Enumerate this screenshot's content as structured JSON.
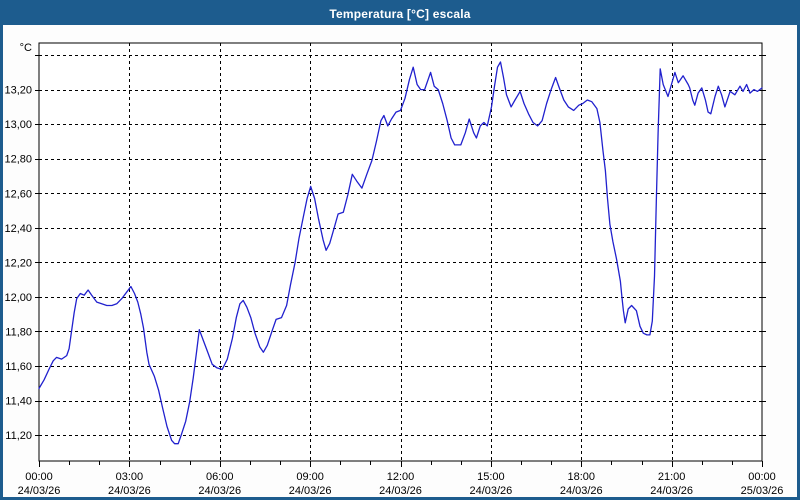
{
  "window": {
    "title": "Temperatura [°C] escala"
  },
  "colors": {
    "titlebar_bg": "#1d5c8e",
    "titlebar_text": "#ffffff",
    "window_border": "#1d5c8e",
    "plot_bg": "#fdfdfd",
    "grid_color": "#000000",
    "axis_color": "#000000",
    "label_color": "#000000",
    "line_color": "#2121ce"
  },
  "chart_data": {
    "type": "line",
    "title": "Temperatura [°C] escala",
    "xlabel": "",
    "ylabel": "°C",
    "legend": "none",
    "grid": "dashed",
    "ylim": [
      11.05,
      13.47
    ],
    "xlim_hours": [
      0,
      24
    ],
    "y_gridline_values": [
      11.2,
      11.4,
      11.6,
      11.8,
      12.0,
      12.2,
      12.4,
      12.6,
      12.8,
      13.0,
      13.2,
      13.4
    ],
    "y_ticks": [
      {
        "value": 13.2,
        "label": "13,20"
      },
      {
        "value": 13.0,
        "label": "13,00"
      },
      {
        "value": 12.8,
        "label": "12,80"
      },
      {
        "value": 12.6,
        "label": "12,60"
      },
      {
        "value": 12.4,
        "label": "12,40"
      },
      {
        "value": 12.2,
        "label": "12,20"
      },
      {
        "value": 12.0,
        "label": "12,00"
      },
      {
        "value": 11.8,
        "label": "11,80"
      },
      {
        "value": 11.6,
        "label": "11,60"
      },
      {
        "value": 11.4,
        "label": "11,40"
      },
      {
        "value": 11.2,
        "label": "11,20"
      }
    ],
    "x_ticks": [
      {
        "hour": 0,
        "time": "00:00",
        "date": "24/03/26"
      },
      {
        "hour": 3,
        "time": "03:00",
        "date": "24/03/26"
      },
      {
        "hour": 6,
        "time": "06:00",
        "date": "24/03/26"
      },
      {
        "hour": 9,
        "time": "09:00",
        "date": "24/03/26"
      },
      {
        "hour": 12,
        "time": "12:00",
        "date": "24/03/26"
      },
      {
        "hour": 15,
        "time": "15:00",
        "date": "24/03/26"
      },
      {
        "hour": 18,
        "time": "18:00",
        "date": "24/03/26"
      },
      {
        "hour": 21,
        "time": "21:00",
        "date": "24/03/26"
      },
      {
        "hour": 24,
        "time": "00:00",
        "date": "25/03/26"
      }
    ],
    "minor_x_tick_every_hours": 1,
    "series": [
      {
        "name": "Temperatura",
        "points": [
          [
            0.0,
            11.47
          ],
          [
            0.17,
            11.52
          ],
          [
            0.33,
            11.58
          ],
          [
            0.47,
            11.63
          ],
          [
            0.58,
            11.65
          ],
          [
            0.75,
            11.64
          ],
          [
            0.92,
            11.66
          ],
          [
            1.0,
            11.7
          ],
          [
            1.08,
            11.8
          ],
          [
            1.17,
            11.91
          ],
          [
            1.25,
            11.99
          ],
          [
            1.37,
            12.02
          ],
          [
            1.5,
            12.01
          ],
          [
            1.63,
            12.04
          ],
          [
            1.75,
            12.01
          ],
          [
            1.92,
            11.97
          ],
          [
            2.08,
            11.96
          ],
          [
            2.25,
            11.95
          ],
          [
            2.42,
            11.95
          ],
          [
            2.58,
            11.96
          ],
          [
            2.75,
            11.99
          ],
          [
            2.92,
            12.03
          ],
          [
            3.05,
            12.06
          ],
          [
            3.17,
            12.02
          ],
          [
            3.28,
            11.97
          ],
          [
            3.38,
            11.9
          ],
          [
            3.47,
            11.82
          ],
          [
            3.58,
            11.68
          ],
          [
            3.65,
            11.61
          ],
          [
            3.83,
            11.54
          ],
          [
            3.97,
            11.46
          ],
          [
            4.1,
            11.36
          ],
          [
            4.25,
            11.25
          ],
          [
            4.4,
            11.17
          ],
          [
            4.5,
            11.15
          ],
          [
            4.62,
            11.15
          ],
          [
            4.72,
            11.2
          ],
          [
            4.87,
            11.28
          ],
          [
            5.0,
            11.39
          ],
          [
            5.12,
            11.53
          ],
          [
            5.22,
            11.67
          ],
          [
            5.32,
            11.81
          ],
          [
            5.45,
            11.75
          ],
          [
            5.58,
            11.69
          ],
          [
            5.75,
            11.61
          ],
          [
            5.9,
            11.59
          ],
          [
            6.08,
            11.58
          ],
          [
            6.25,
            11.64
          ],
          [
            6.42,
            11.76
          ],
          [
            6.55,
            11.88
          ],
          [
            6.67,
            11.96
          ],
          [
            6.78,
            11.98
          ],
          [
            6.9,
            11.94
          ],
          [
            7.03,
            11.88
          ],
          [
            7.17,
            11.79
          ],
          [
            7.33,
            11.71
          ],
          [
            7.45,
            11.68
          ],
          [
            7.58,
            11.72
          ],
          [
            7.75,
            11.81
          ],
          [
            7.87,
            11.87
          ],
          [
            8.05,
            11.88
          ],
          [
            8.22,
            11.95
          ],
          [
            8.35,
            12.07
          ],
          [
            8.5,
            12.2
          ],
          [
            8.63,
            12.34
          ],
          [
            8.77,
            12.46
          ],
          [
            8.9,
            12.57
          ],
          [
            9.02,
            12.64
          ],
          [
            9.15,
            12.57
          ],
          [
            9.28,
            12.45
          ],
          [
            9.43,
            12.33
          ],
          [
            9.53,
            12.27
          ],
          [
            9.65,
            12.31
          ],
          [
            9.8,
            12.4
          ],
          [
            9.93,
            12.48
          ],
          [
            10.1,
            12.49
          ],
          [
            10.25,
            12.59
          ],
          [
            10.4,
            12.71
          ],
          [
            10.55,
            12.67
          ],
          [
            10.72,
            12.63
          ],
          [
            10.88,
            12.71
          ],
          [
            11.05,
            12.79
          ],
          [
            11.2,
            12.9
          ],
          [
            11.35,
            13.02
          ],
          [
            11.45,
            13.05
          ],
          [
            11.58,
            12.99
          ],
          [
            11.7,
            13.03
          ],
          [
            11.85,
            13.07
          ],
          [
            12.0,
            13.08
          ],
          [
            12.15,
            13.15
          ],
          [
            12.3,
            13.26
          ],
          [
            12.42,
            13.33
          ],
          [
            12.55,
            13.23
          ],
          [
            12.67,
            13.2
          ],
          [
            12.8,
            13.2
          ],
          [
            12.92,
            13.26
          ],
          [
            13.0,
            13.3
          ],
          [
            13.12,
            13.22
          ],
          [
            13.25,
            13.2
          ],
          [
            13.4,
            13.12
          ],
          [
            13.55,
            13.02
          ],
          [
            13.68,
            12.92
          ],
          [
            13.8,
            12.88
          ],
          [
            14.0,
            12.88
          ],
          [
            14.15,
            12.95
          ],
          [
            14.28,
            13.03
          ],
          [
            14.43,
            12.95
          ],
          [
            14.52,
            12.92
          ],
          [
            14.65,
            12.99
          ],
          [
            14.77,
            13.01
          ],
          [
            14.88,
            12.99
          ],
          [
            15.02,
            13.1
          ],
          [
            15.12,
            13.22
          ],
          [
            15.22,
            13.33
          ],
          [
            15.32,
            13.36
          ],
          [
            15.42,
            13.27
          ],
          [
            15.52,
            13.17
          ],
          [
            15.67,
            13.1
          ],
          [
            15.8,
            13.14
          ],
          [
            15.97,
            13.19
          ],
          [
            16.1,
            13.12
          ],
          [
            16.25,
            13.06
          ],
          [
            16.4,
            13.01
          ],
          [
            16.55,
            12.99
          ],
          [
            16.7,
            13.02
          ],
          [
            16.85,
            13.12
          ],
          [
            17.0,
            13.2
          ],
          [
            17.15,
            13.27
          ],
          [
            17.27,
            13.21
          ],
          [
            17.42,
            13.14
          ],
          [
            17.57,
            13.1
          ],
          [
            17.75,
            13.08
          ],
          [
            17.92,
            13.11
          ],
          [
            18.05,
            13.12
          ],
          [
            18.2,
            13.14
          ],
          [
            18.35,
            13.13
          ],
          [
            18.52,
            13.09
          ],
          [
            18.62,
            13.01
          ],
          [
            18.72,
            12.85
          ],
          [
            18.8,
            12.73
          ],
          [
            18.87,
            12.57
          ],
          [
            18.95,
            12.42
          ],
          [
            19.05,
            12.32
          ],
          [
            19.17,
            12.22
          ],
          [
            19.3,
            12.09
          ],
          [
            19.35,
            12.0
          ],
          [
            19.4,
            11.92
          ],
          [
            19.46,
            11.85
          ],
          [
            19.56,
            11.93
          ],
          [
            19.67,
            11.95
          ],
          [
            19.83,
            11.92
          ],
          [
            19.95,
            11.83
          ],
          [
            20.06,
            11.79
          ],
          [
            20.18,
            11.78
          ],
          [
            20.28,
            11.78
          ],
          [
            20.36,
            11.86
          ],
          [
            20.43,
            12.12
          ],
          [
            20.49,
            12.55
          ],
          [
            20.55,
            12.95
          ],
          [
            20.62,
            13.32
          ],
          [
            20.72,
            13.23
          ],
          [
            20.88,
            13.16
          ],
          [
            21.11,
            13.3
          ],
          [
            21.22,
            13.24
          ],
          [
            21.38,
            13.28
          ],
          [
            21.55,
            13.23
          ],
          [
            21.6,
            13.21
          ],
          [
            21.7,
            13.14
          ],
          [
            21.77,
            13.11
          ],
          [
            21.88,
            13.18
          ],
          [
            22.0,
            13.21
          ],
          [
            22.12,
            13.14
          ],
          [
            22.21,
            13.07
          ],
          [
            22.3,
            13.06
          ],
          [
            22.44,
            13.16
          ],
          [
            22.55,
            13.22
          ],
          [
            22.66,
            13.17
          ],
          [
            22.77,
            13.1
          ],
          [
            22.94,
            13.19
          ],
          [
            23.1,
            13.17
          ],
          [
            23.27,
            13.22
          ],
          [
            23.37,
            13.19
          ],
          [
            23.49,
            13.23
          ],
          [
            23.6,
            13.18
          ],
          [
            23.73,
            13.2
          ],
          [
            23.85,
            13.19
          ],
          [
            24.0,
            13.21
          ]
        ]
      }
    ]
  }
}
